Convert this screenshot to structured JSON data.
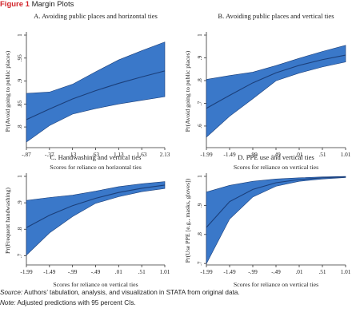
{
  "figure": {
    "label": "Figure 1",
    "title": "Margin Plots",
    "source_label": "Source:",
    "source_text": "Authors’ tabulation, analysis, and visualization in STATA from original data.",
    "note_label": "Note:",
    "note_text": "Adjusted predictions with 95 percent CIs.",
    "band_color": "#3a78c9",
    "line_color": "#1b3f7a"
  },
  "chart_data": [
    {
      "type": "line",
      "title": "A. Avoiding public places and horizontal ties",
      "xlabel": "Scores for reliance on horizontal ties",
      "ylabel": "Pr(Avoid going to public places)",
      "x": [
        -0.87,
        -0.37,
        0.13,
        0.63,
        1.13,
        1.63,
        2.13
      ],
      "x_tick_labels": [
        "-.87",
        "-.37",
        ".13",
        ".63",
        "1.13",
        "1.63",
        "2.13"
      ],
      "y_ticks": [
        0.8,
        0.85,
        0.9,
        0.95,
        1
      ],
      "y_tick_labels": [
        ".8",
        ".85",
        ".9",
        ".95",
        "1"
      ],
      "xlim": [
        -0.87,
        2.13
      ],
      "ylim": [
        0.755,
        1.0
      ],
      "series": [
        {
          "estimate": [
            0.816,
            0.839,
            0.861,
            0.879,
            0.895,
            0.909,
            0.922
          ],
          "ci_lower": [
            0.767,
            0.803,
            0.828,
            0.84,
            0.85,
            0.858,
            0.866
          ],
          "ci_upper": [
            0.873,
            0.876,
            0.893,
            0.92,
            0.946,
            0.966,
            0.985
          ]
        }
      ]
    },
    {
      "type": "line",
      "title": "B. Avoiding public places and vertical ties",
      "xlabel": "Scores for reliance on vertical ties",
      "ylabel": "Pr(Avoid going to public places)",
      "x": [
        -1.99,
        -1.49,
        -0.99,
        -0.49,
        0.01,
        0.51,
        1.01
      ],
      "x_tick_labels": [
        "-1.99",
        "-1.49",
        "-.99",
        "-.49",
        ".01",
        ".51",
        "1.01"
      ],
      "y_ticks": [
        0.6,
        0.7,
        0.8,
        0.9,
        1
      ],
      "y_tick_labels": [
        ".6",
        ".7",
        ".8",
        ".9",
        "1"
      ],
      "xlim": [
        -1.99,
        1.01
      ],
      "ylim": [
        0.505,
        1.0
      ],
      "series": [
        {
          "estimate": [
            0.678,
            0.735,
            0.79,
            0.834,
            0.867,
            0.892,
            0.912
          ],
          "ci_lower": [
            0.551,
            0.643,
            0.72,
            0.799,
            0.833,
            0.86,
            0.882
          ],
          "ci_upper": [
            0.805,
            0.822,
            0.837,
            0.866,
            0.898,
            0.928,
            0.955
          ]
        }
      ]
    },
    {
      "type": "line",
      "title": "C. Handwashing and vertical ties",
      "xlabel": "Scores for reliance on vertical ties",
      "ylabel": "Pr(Frequent handwashing)",
      "x": [
        -1.99,
        -1.49,
        -0.99,
        -0.49,
        0.01,
        0.51,
        1.01
      ],
      "x_tick_labels": [
        "-1.99",
        "-1.49",
        "-.99",
        "-.49",
        ".01",
        ".51",
        "1.01"
      ],
      "y_ticks": [
        0.7,
        0.8,
        0.9,
        1
      ],
      "y_tick_labels": [
        ".7",
        ".8",
        ".9",
        "1"
      ],
      "xlim": [
        -1.99,
        1.01
      ],
      "ylim": [
        0.665,
        1.0
      ],
      "series": [
        {
          "estimate": [
            0.806,
            0.853,
            0.889,
            0.917,
            0.939,
            0.955,
            0.967
          ],
          "ci_lower": [
            0.702,
            0.786,
            0.848,
            0.898,
            0.923,
            0.942,
            0.954
          ],
          "ci_upper": [
            0.909,
            0.92,
            0.929,
            0.944,
            0.961,
            0.972,
            0.98
          ]
        }
      ]
    },
    {
      "type": "line",
      "title": "D. PPE use and vertical ties",
      "xlabel": "Scores for reliance on vertical ties",
      "ylabel": "Pr(Use PPE [e.g., masks, gloves])",
      "x": [
        -1.99,
        -1.49,
        -0.99,
        -0.49,
        0.01,
        0.51,
        1.01
      ],
      "x_tick_labels": [
        "-1.99",
        "-1.49",
        "-.99",
        "-.49",
        ".01",
        ".51",
        "1.01"
      ],
      "y_ticks": [
        0.7,
        0.8,
        0.9,
        1
      ],
      "y_tick_labels": [
        ".7",
        ".8",
        ".9",
        "1"
      ],
      "xlim": [
        -1.99,
        1.01
      ],
      "ylim": [
        0.695,
        1.0
      ],
      "series": [
        {
          "estimate": [
            0.824,
            0.913,
            0.955,
            0.978,
            0.989,
            0.995,
            0.998
          ],
          "ci_lower": [
            0.699,
            0.853,
            0.929,
            0.966,
            0.983,
            0.991,
            0.996
          ],
          "ci_upper": [
            0.946,
            0.969,
            0.983,
            0.991,
            0.995,
            0.998,
            1.0
          ]
        }
      ]
    }
  ]
}
